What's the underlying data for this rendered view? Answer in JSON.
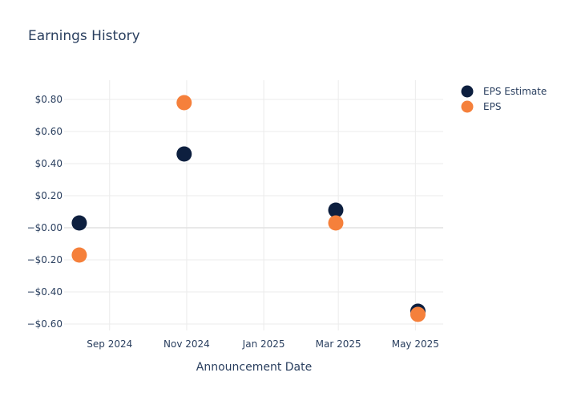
{
  "chart_data": {
    "type": "scatter",
    "title": "Earnings History",
    "xlabel": "Announcement Date",
    "ylabel": "",
    "x_ticks": [
      {
        "date": "2024-09-01",
        "label": "Sep 2024"
      },
      {
        "date": "2024-11-01",
        "label": "Nov 2024"
      },
      {
        "date": "2025-01-01",
        "label": "Jan 2025"
      },
      {
        "date": "2025-03-01",
        "label": "Mar 2025"
      },
      {
        "date": "2025-05-01",
        "label": "May 2025"
      }
    ],
    "xlim": [
      "2024-07-27",
      "2025-05-23"
    ],
    "y_ticks": [
      {
        "value": 0.8,
        "label": "$0.80"
      },
      {
        "value": 0.6,
        "label": "$0.60"
      },
      {
        "value": 0.4,
        "label": "$0.40"
      },
      {
        "value": 0.2,
        "label": "$0.20"
      },
      {
        "value": 0.0,
        "label": "−$0.00"
      },
      {
        "value": -0.2,
        "label": "−$0.20"
      },
      {
        "value": -0.4,
        "label": "−$0.40"
      },
      {
        "value": -0.6,
        "label": "−$0.60"
      }
    ],
    "ylim": [
      -0.64,
      0.92
    ],
    "grid": true,
    "legend_position": "top-right",
    "series": [
      {
        "name": "EPS Estimate",
        "color": "#0d1f3f",
        "points": [
          {
            "x": "2024-08-08",
            "y": 0.03
          },
          {
            "x": "2024-10-30",
            "y": 0.46
          },
          {
            "x": "2025-02-27",
            "y": 0.11
          },
          {
            "x": "2025-05-03",
            "y": -0.52
          }
        ]
      },
      {
        "name": "EPS",
        "color": "#f5803b",
        "points": [
          {
            "x": "2024-08-08",
            "y": -0.17
          },
          {
            "x": "2024-10-30",
            "y": 0.78
          },
          {
            "x": "2025-02-27",
            "y": 0.03
          },
          {
            "x": "2025-05-03",
            "y": -0.54
          }
        ]
      }
    ]
  }
}
